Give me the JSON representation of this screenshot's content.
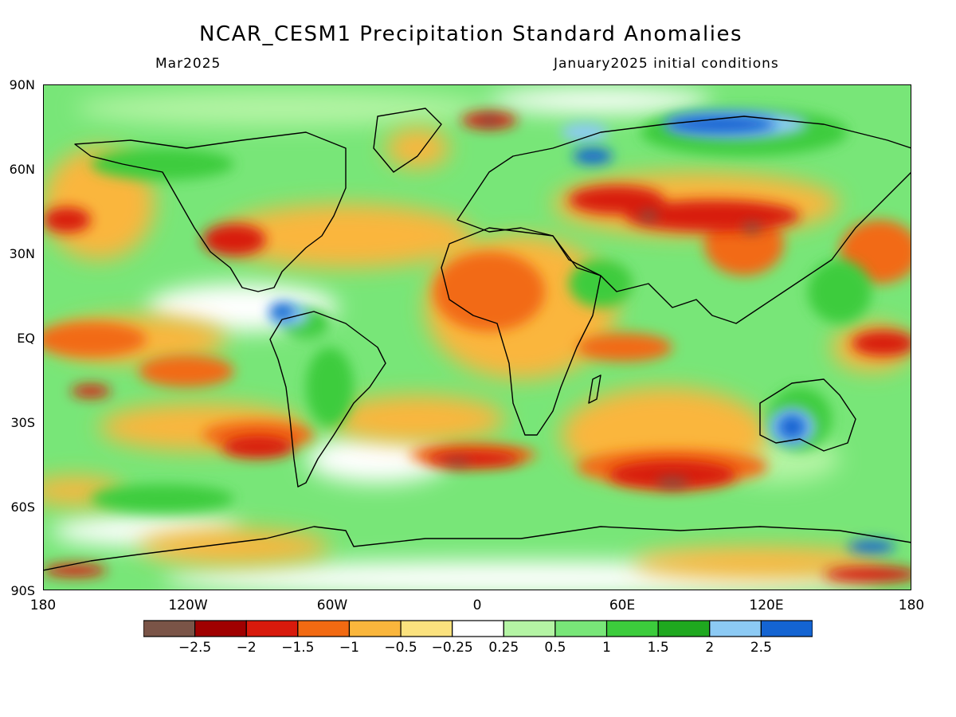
{
  "title": "NCAR_CESM1 Precipitation Standard Anomalies",
  "subtitle_left": "Mar2025",
  "subtitle_right": "January2025 initial conditions",
  "lat_labels": [
    "90N",
    "60N",
    "30N",
    "EQ",
    "30S",
    "60S",
    "90S"
  ],
  "lon_labels": [
    "180",
    "120W",
    "60W",
    "0",
    "60E",
    "120E",
    "180"
  ],
  "legend": {
    "colors": [
      "#7a5447",
      "#a00000",
      "#d81a0c",
      "#f26a12",
      "#fab63c",
      "#fbe27e",
      "#ffffff",
      "#b4f4a4",
      "#78e678",
      "#3ccc3c",
      "#1fa81f",
      "#8ccaf4",
      "#1464d2"
    ],
    "tick_labels": [
      "−2.5",
      "−2",
      "−1.5",
      "−1",
      "−0.5",
      "−0.25",
      "0.25",
      "0.5",
      "1",
      "1.5",
      "2",
      "2.5"
    ]
  }
}
